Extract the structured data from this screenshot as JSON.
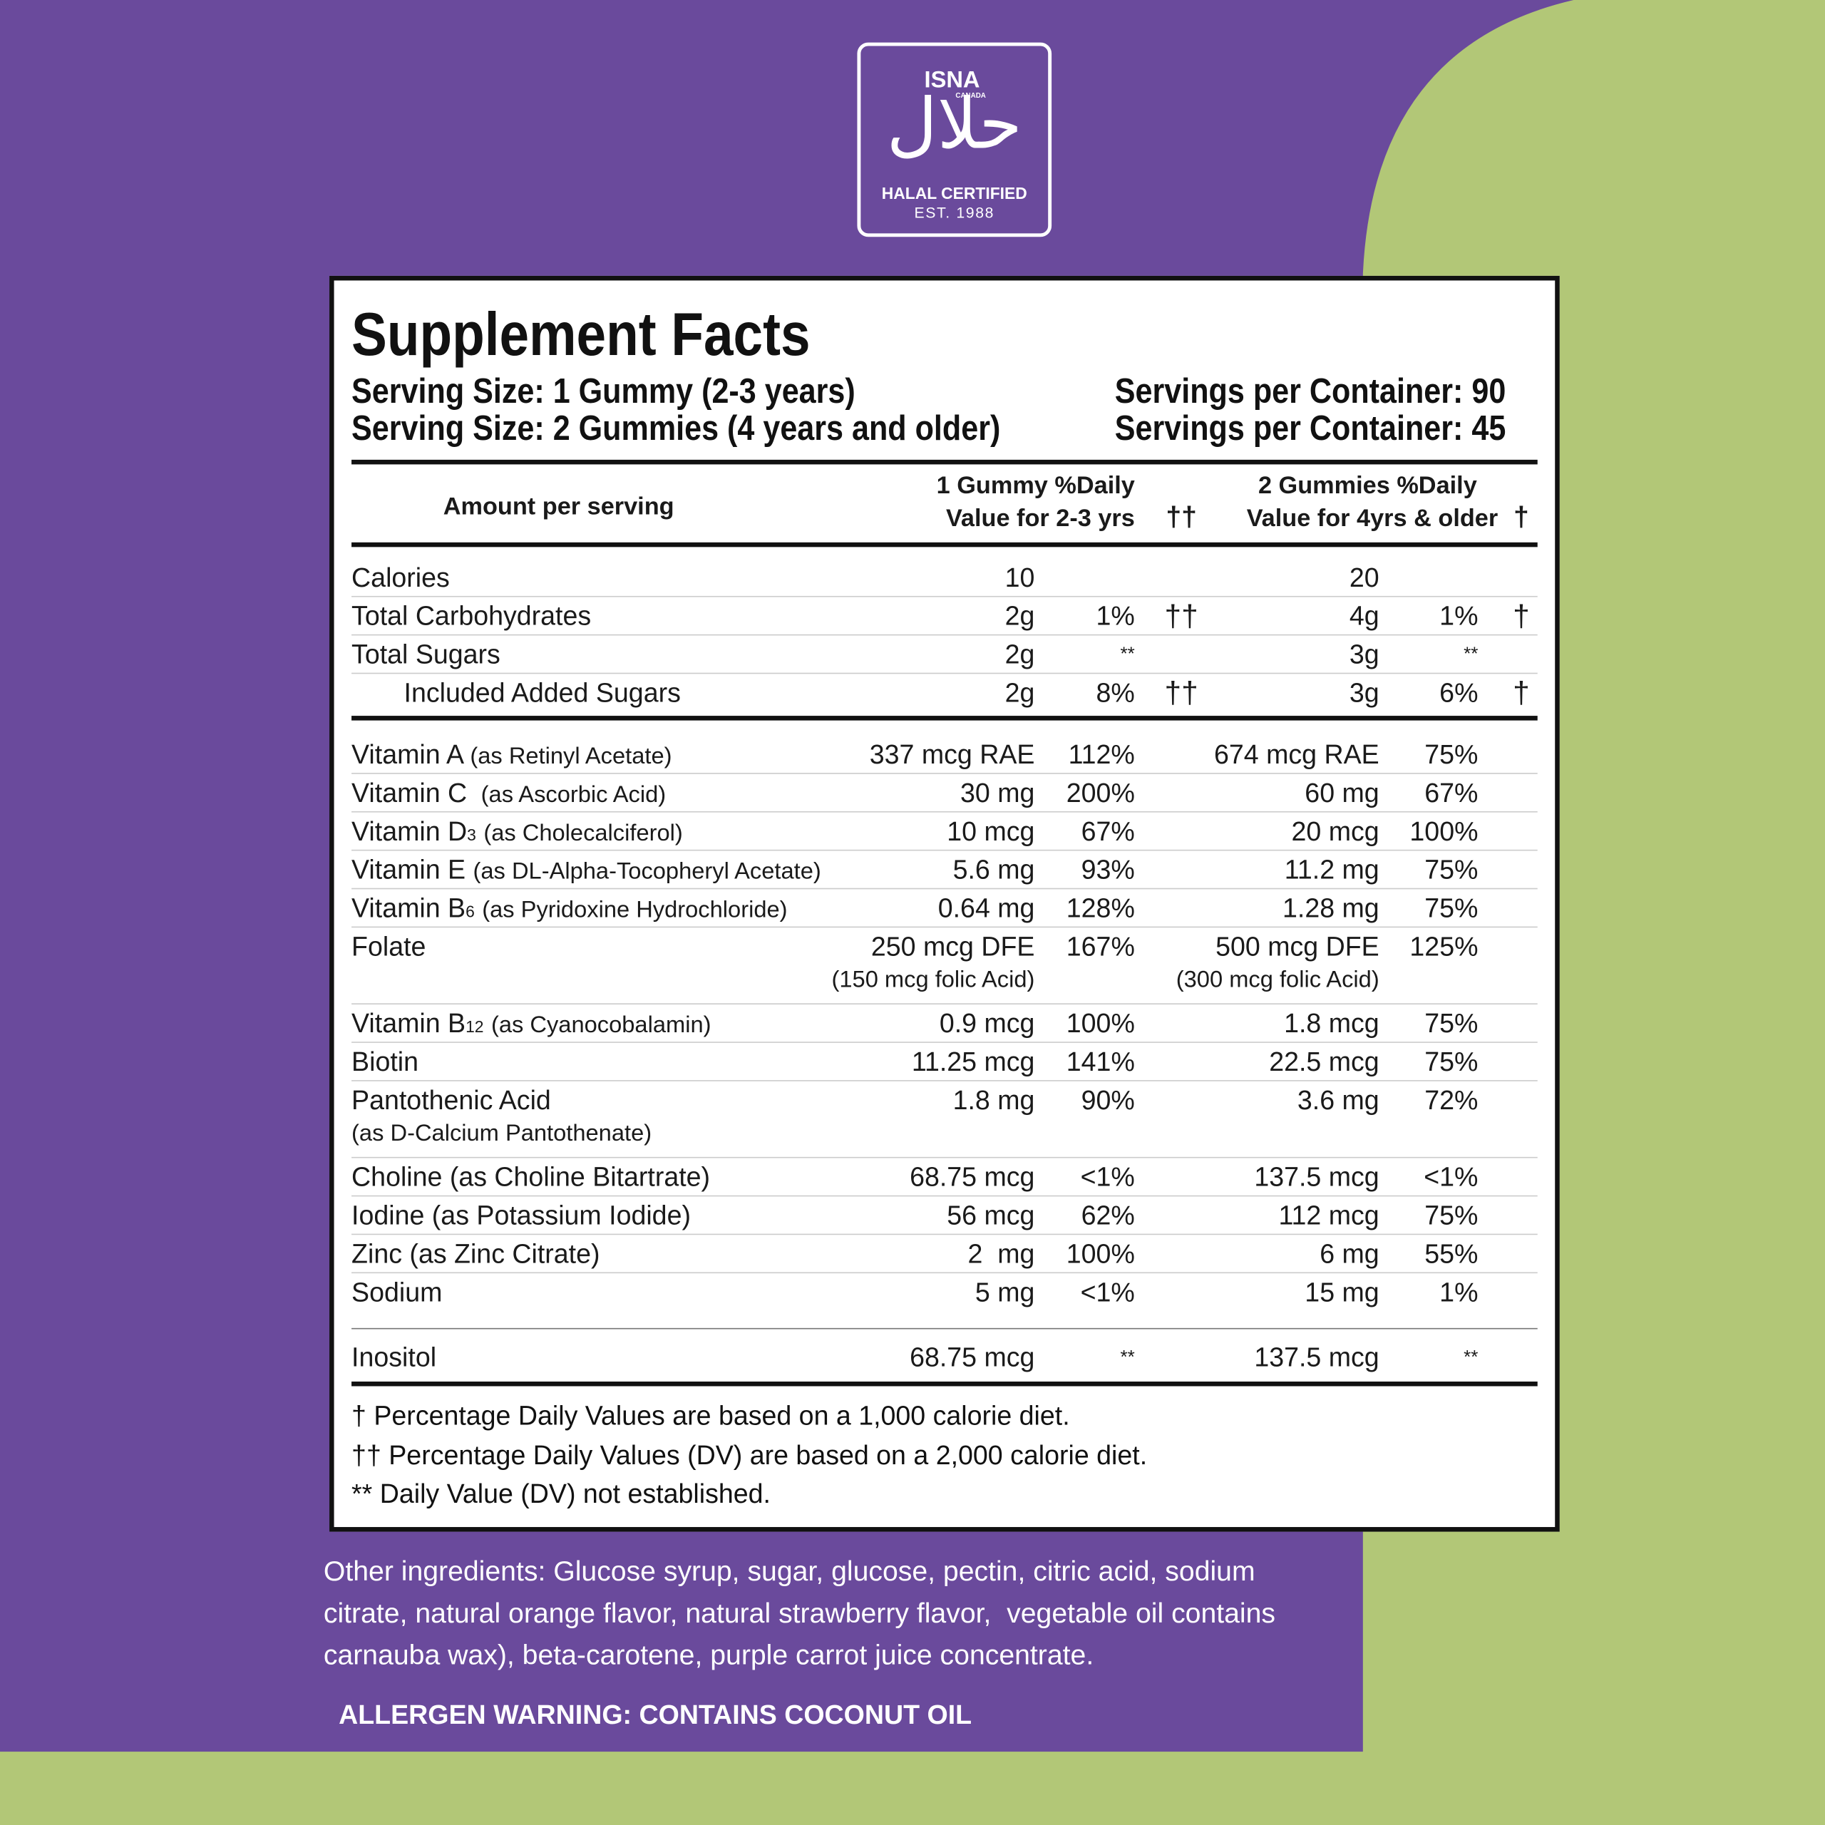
{
  "logo": {
    "brand": "ISNA",
    "region": "CANADA",
    "arabic": "حلال",
    "certified": "HALAL CERTIFIED",
    "established": "EST. 1988"
  },
  "facts": {
    "title": "Supplement Facts",
    "serving_sizes": [
      {
        "size": "Serving Size: 1 Gummy (2-3 years)",
        "servings": "Servings per Container: 90"
      },
      {
        "size": "Serving Size: 2 Gummies (4 years and older)",
        "servings": "Servings per Container: 45"
      }
    ],
    "header": {
      "amount": "Amount per serving",
      "col1_line1": "1 Gummy %Daily",
      "col1_line2": "Value for 2-3 yrs",
      "col1_mark": "††",
      "col2_line1": "2 Gummies %Daily",
      "col2_line2": "Value for 4yrs & older",
      "col2_mark": "†"
    },
    "groups": [
      {
        "rows": [
          {
            "name": "Calories",
            "amount1": "10",
            "amount2": "20"
          },
          {
            "name": "Total Carbohydrates",
            "amount1": "2g",
            "dv1": "1%",
            "mark1": "††",
            "amount2": "4g",
            "dv2": "1%",
            "mark2": "†"
          },
          {
            "name": "Total Sugars",
            "amount1": "2g",
            "dv1": "**",
            "amount2": "3g",
            "dv2": "**"
          },
          {
            "name": "Included Added Sugars",
            "indent": true,
            "amount1": "2g",
            "dv1": "8%",
            "mark1": "††",
            "amount2": "3g",
            "dv2": "6%",
            "mark2": "†"
          }
        ]
      },
      {
        "rows": [
          {
            "name": "Vitamin A",
            "note": "(as Retinyl Acetate)",
            "amount1": "337 mcg RAE",
            "dv1": "112%",
            "amount2": "674 mcg RAE",
            "dv2": "75%"
          },
          {
            "name": "Vitamin C",
            "note": " (as Ascorbic Acid)",
            "amount1": "30 mg",
            "dv1": "200%",
            "amount2": "60 mg",
            "dv2": "67%"
          },
          {
            "name": "Vitamin D",
            "sub": "3",
            "note": "(as Cholecalciferol)",
            "amount1": "10 mcg",
            "dv1": "67%",
            "amount2": "20 mcg",
            "dv2": "100%"
          },
          {
            "name": "Vitamin E",
            "note": "(as DL-Alpha-Tocopheryl Acetate)",
            "amount1": "5.6 mg",
            "dv1": "93%",
            "amount2": "11.2 mg",
            "dv2": "75%"
          },
          {
            "name": "Vitamin B",
            "sub": "6",
            "note": "(as Pyridoxine Hydrochloride)",
            "amount1": "0.64 mg",
            "dv1": "128%",
            "amount2": "1.28 mg",
            "dv2": "75%"
          },
          {
            "name": "Folate",
            "amount1": "250 mcg DFE",
            "dv1": "167%",
            "amount2": "500 mcg DFE",
            "dv2": "125%",
            "extra1": "(150 mcg folic Acid)",
            "extra2": "(300 mcg folic Acid)"
          },
          {
            "name": "Vitamin B",
            "sub": "12",
            "note": "(as Cyanocobalamin)",
            "amount1": "0.9 mcg",
            "dv1": "100%",
            "amount2": "1.8 mcg",
            "dv2": "75%"
          },
          {
            "name": "Biotin",
            "amount1": "11.25 mcg",
            "dv1": "141%",
            "amount2": "22.5 mcg",
            "dv2": "75%"
          },
          {
            "name": "Pantothenic Acid",
            "note_line": "(as D-Calcium Pantothenate)",
            "amount1": "1.8 mg",
            "dv1": "90%",
            "amount2": "3.6 mg",
            "dv2": "72%"
          },
          {
            "name": "Choline (as Choline Bitartrate)",
            "amount1": "68.75 mcg",
            "dv1": "<1%",
            "amount2": "137.5 mcg",
            "dv2": "<1%"
          },
          {
            "name": "Iodine (as Potassium Iodide)",
            "amount1": "56 mcg",
            "dv1": "62%",
            "amount2": "112 mcg",
            "dv2": "75%"
          },
          {
            "name": "Zinc (as Zinc Citrate)",
            "amount1": "2  mg",
            "dv1": "100%",
            "amount2": "6 mg",
            "dv2": "55%"
          },
          {
            "name": "Sodium",
            "amount1": "5 mg",
            "dv1": "<1%",
            "amount2": "15 mg",
            "dv2": "1%"
          }
        ]
      },
      {
        "rows": [
          {
            "name": "Inositol",
            "amount1": "68.75 mcg",
            "dv1": "**",
            "amount2": "137.5 mcg",
            "dv2": "**"
          }
        ]
      }
    ],
    "footnotes": [
      "† Percentage Daily Values are based on a 1,000 calorie diet.",
      "†† Percentage Daily Values (DV) are based on a 2,000 calorie diet.",
      "** Daily Value (DV) not established."
    ]
  },
  "ingredients": [
    "Other ingredients: Glucose syrup, sugar, glucose, pectin, citric acid, sodium",
    "citrate, natural orange flavor, natural strawberry flavor,  vegetable oil contains",
    "carnauba wax), beta-carotene, purple carrot juice concentrate."
  ],
  "allergen": "ALLERGEN WARNING: CONTAINS COCONUT OIL"
}
